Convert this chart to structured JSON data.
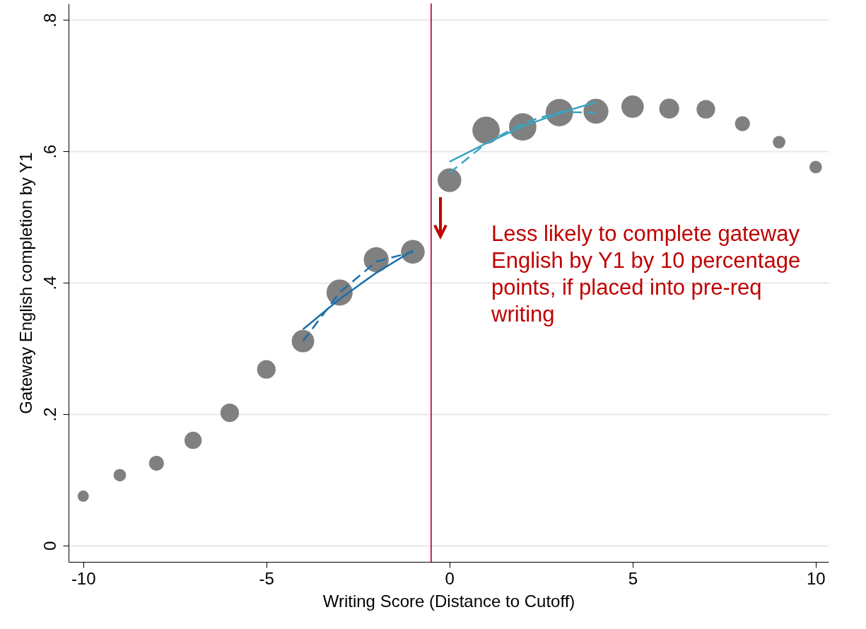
{
  "chart_data": {
    "type": "bubble",
    "xlabel": "Writing Score (Distance to Cutoff)",
    "ylabel": "Gateway English completion by Y1",
    "x": [
      -10,
      -9,
      -8,
      -7,
      -6,
      -5,
      -4,
      -3,
      -2,
      -1,
      0,
      1,
      2,
      3,
      4,
      5,
      6,
      7,
      8,
      9,
      10
    ],
    "series": [
      {
        "color": "#808080",
        "values": [
          0.075,
          0.107,
          0.125,
          0.16,
          0.202,
          0.268,
          0.311,
          0.385,
          0.435,
          0.447,
          0.556,
          0.632,
          0.637,
          0.659,
          0.661,
          0.668,
          0.665,
          0.664,
          0.642,
          0.614,
          0.576
        ],
        "sizes": [
          0.17,
          0.21,
          0.3,
          0.4,
          0.46,
          0.46,
          0.67,
          0.91,
          0.83,
          0.75,
          0.75,
          1,
          1,
          1,
          0.83,
          0.67,
          0.53,
          0.46,
          0.3,
          0.21,
          0.21
        ]
      },
      {
        "type": "line",
        "color": "#1a6fad",
        "line_style": "solid",
        "marker": "none",
        "x": [
          -4,
          -3,
          -2,
          -1
        ],
        "values": [
          0.329,
          0.375,
          0.415,
          0.449
        ]
      },
      {
        "type": "line",
        "color": "#1a6fad",
        "line_style": "dashed",
        "marker": "none",
        "x": [
          -4,
          -3,
          -2,
          -1
        ],
        "values": [
          0.311,
          0.385,
          0.432,
          0.447
        ]
      },
      {
        "type": "line",
        "color": "#3aa3c2",
        "line_style": "solid",
        "marker": "none",
        "x": [
          0,
          1,
          2,
          3,
          4
        ],
        "values": [
          0.584,
          0.612,
          0.638,
          0.658,
          0.675
        ]
      },
      {
        "type": "line",
        "color": "#3aa3c2",
        "line_style": "dashed",
        "marker": "none",
        "x": [
          0,
          1,
          2,
          3,
          4
        ],
        "values": [
          0.567,
          0.612,
          0.643,
          0.66,
          0.659
        ]
      }
    ],
    "xlim": [
      -10.4,
      10.35
    ],
    "xticks": [
      -10,
      -5,
      0,
      5,
      10
    ],
    "ylim": [
      -0.025,
      0.825
    ],
    "yticks": [
      0,
      {
        "value": 0.2,
        "label": ".2"
      },
      {
        "value": 0.4,
        "label": ".4"
      },
      {
        "value": 0.6,
        "label": ".6"
      },
      {
        "value": 0.8,
        "label": ".8"
      }
    ],
    "grid": "y",
    "legend": false,
    "ref_lines": [
      {
        "axis": "x",
        "value": -0.5,
        "color": "#c8254a"
      }
    ],
    "annotations": [
      "Less likely to complete gateway English by Y1 by 10 percentage points, if placed into pre-req writing"
    ]
  }
}
